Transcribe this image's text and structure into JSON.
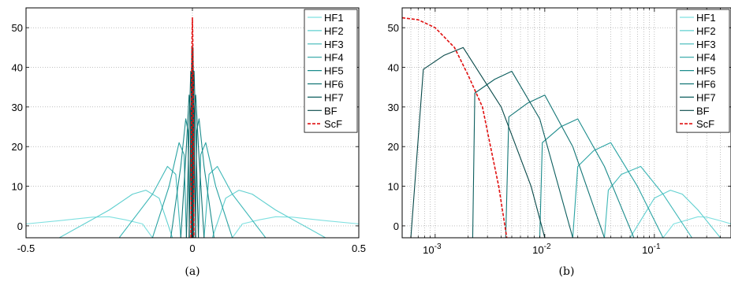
{
  "chart_data": [
    {
      "type": "line",
      "panel_label": "(a)",
      "xlim": [
        -0.5,
        0.5
      ],
      "ylim": [
        -3,
        55
      ],
      "xticks": [
        -0.5,
        0,
        0.5
      ],
      "xtick_labels": [
        "-0.5",
        "0",
        "0.5"
      ],
      "yticks": [
        0,
        10,
        20,
        30,
        40,
        50
      ],
      "ytick_labels": [
        "0",
        "10",
        "20",
        "30",
        "40",
        "50"
      ],
      "grid": true,
      "legend_position": "top-right",
      "series": [
        {
          "name": "HF1",
          "color": "#7fe0e0",
          "dash": false,
          "points": [
            [
              -0.5,
              0.5
            ],
            [
              -0.4,
              1.3
            ],
            [
              -0.3,
              2.2
            ],
            [
              -0.25,
              2.3
            ],
            [
              -0.2,
              1.5
            ],
            [
              -0.15,
              0.5
            ],
            [
              -0.12,
              -3
            ],
            [
              0.12,
              -3
            ],
            [
              0.15,
              0.5
            ],
            [
              0.2,
              1.5
            ],
            [
              0.25,
              2.3
            ],
            [
              0.3,
              2.2
            ],
            [
              0.4,
              1.3
            ],
            [
              0.5,
              0.5
            ]
          ]
        },
        {
          "name": "HF2",
          "color": "#5fcfcf",
          "dash": false,
          "points": [
            [
              -0.4,
              -3
            ],
            [
              -0.25,
              4
            ],
            [
              -0.18,
              8
            ],
            [
              -0.14,
              9
            ],
            [
              -0.1,
              7
            ],
            [
              -0.06,
              -3
            ],
            [
              0.06,
              -3
            ],
            [
              0.1,
              7
            ],
            [
              0.14,
              9
            ],
            [
              0.18,
              8
            ],
            [
              0.25,
              4
            ],
            [
              0.4,
              -3
            ]
          ]
        },
        {
          "name": "HF3",
          "color": "#3fb8b8",
          "dash": false,
          "points": [
            [
              -0.22,
              -3
            ],
            [
              -0.12,
              8
            ],
            [
              -0.075,
              15
            ],
            [
              -0.05,
              13
            ],
            [
              -0.035,
              -3
            ],
            [
              0.035,
              -3
            ],
            [
              0.05,
              13
            ],
            [
              0.075,
              15
            ],
            [
              0.12,
              8
            ],
            [
              0.22,
              -3
            ]
          ]
        },
        {
          "name": "HF4",
          "color": "#2aa3a3",
          "dash": false,
          "points": [
            [
              -0.12,
              -3
            ],
            [
              -0.07,
              10
            ],
            [
              -0.04,
              21
            ],
            [
              -0.025,
              18
            ],
            [
              -0.018,
              -3
            ],
            [
              0.018,
              -3
            ],
            [
              0.025,
              18
            ],
            [
              0.04,
              21
            ],
            [
              0.07,
              10
            ],
            [
              0.12,
              -3
            ]
          ]
        },
        {
          "name": "HF5",
          "color": "#1c8c8c",
          "dash": false,
          "points": [
            [
              -0.065,
              -3
            ],
            [
              -0.035,
              15
            ],
            [
              -0.02,
              27
            ],
            [
              -0.013,
              24
            ],
            [
              -0.009,
              -3
            ],
            [
              0.009,
              -3
            ],
            [
              0.013,
              24
            ],
            [
              0.02,
              27
            ],
            [
              0.035,
              15
            ],
            [
              0.065,
              -3
            ]
          ]
        },
        {
          "name": "HF6",
          "color": "#137575",
          "dash": false,
          "points": [
            [
              -0.035,
              -3
            ],
            [
              -0.018,
              20
            ],
            [
              -0.01,
              33
            ],
            [
              -0.006,
              29
            ],
            [
              -0.004,
              -3
            ],
            [
              0.004,
              -3
            ],
            [
              0.006,
              29
            ],
            [
              0.01,
              33
            ],
            [
              0.018,
              20
            ],
            [
              0.035,
              -3
            ]
          ]
        },
        {
          "name": "HF7",
          "color": "#0c5e5e",
          "dash": false,
          "points": [
            [
              -0.018,
              -3
            ],
            [
              -0.009,
              27
            ],
            [
              -0.005,
              39
            ],
            [
              -0.003,
              34
            ],
            [
              -0.002,
              -3
            ],
            [
              0.002,
              -3
            ],
            [
              0.003,
              34
            ],
            [
              0.005,
              39
            ],
            [
              0.009,
              27
            ],
            [
              0.018,
              -3
            ]
          ]
        },
        {
          "name": "BF",
          "color": "#074848",
          "dash": false,
          "points": [
            [
              -0.01,
              -3
            ],
            [
              -0.004,
              30
            ],
            [
              -0.0018,
              45
            ],
            [
              -0.0008,
              40
            ],
            [
              -0.0005,
              -3
            ],
            [
              0.0005,
              -3
            ],
            [
              0.0008,
              40
            ],
            [
              0.0018,
              45
            ],
            [
              0.004,
              30
            ],
            [
              0.01,
              -3
            ]
          ]
        },
        {
          "name": "ScF",
          "color": "#e01010",
          "dash": true,
          "points": [
            [
              -0.0045,
              -3
            ],
            [
              -0.003,
              20
            ],
            [
              -0.002,
              38
            ],
            [
              -0.001,
              48
            ],
            [
              0,
              52.5
            ],
            [
              0.001,
              48
            ],
            [
              0.002,
              38
            ],
            [
              0.003,
              20
            ],
            [
              0.0045,
              -3
            ]
          ]
        }
      ]
    },
    {
      "type": "line",
      "panel_label": "(b)",
      "xscale": "log",
      "xlim": [
        0.0005,
        0.5
      ],
      "ylim": [
        -3,
        55
      ],
      "xticks": [
        0.001,
        0.01,
        0.1
      ],
      "xtick_labels": [
        "10-3",
        "10-2",
        "10-1"
      ],
      "yticks": [
        0,
        10,
        20,
        30,
        40,
        50
      ],
      "ytick_labels": [
        "0",
        "10",
        "20",
        "30",
        "40",
        "50"
      ],
      "grid": true,
      "legend_position": "top-right",
      "series": [
        {
          "name": "HF1",
          "color": "#7fe0e0",
          "dash": false,
          "points": [
            [
              0.12,
              -3
            ],
            [
              0.15,
              0.5
            ],
            [
              0.2,
              1.5
            ],
            [
              0.25,
              2.3
            ],
            [
              0.3,
              2.2
            ],
            [
              0.4,
              1.3
            ],
            [
              0.5,
              0.5
            ]
          ]
        },
        {
          "name": "HF2",
          "color": "#5fcfcf",
          "dash": false,
          "points": [
            [
              0.06,
              -3
            ],
            [
              0.1,
              7
            ],
            [
              0.14,
              9
            ],
            [
              0.18,
              8
            ],
            [
              0.25,
              4
            ],
            [
              0.4,
              -3
            ]
          ]
        },
        {
          "name": "HF3",
          "color": "#3fb8b8",
          "dash": false,
          "points": [
            [
              0.035,
              -3
            ],
            [
              0.038,
              9
            ],
            [
              0.05,
              13
            ],
            [
              0.075,
              15
            ],
            [
              0.12,
              8
            ],
            [
              0.22,
              -3
            ]
          ]
        },
        {
          "name": "HF4",
          "color": "#2aa3a3",
          "dash": false,
          "points": [
            [
              0.018,
              -3
            ],
            [
              0.02,
              15
            ],
            [
              0.028,
              19
            ],
            [
              0.04,
              21
            ],
            [
              0.07,
              10
            ],
            [
              0.12,
              -3
            ]
          ]
        },
        {
          "name": "HF5",
          "color": "#1c8c8c",
          "dash": false,
          "points": [
            [
              0.009,
              -3
            ],
            [
              0.0095,
              21
            ],
            [
              0.014,
              25
            ],
            [
              0.02,
              27
            ],
            [
              0.035,
              15
            ],
            [
              0.065,
              -3
            ]
          ]
        },
        {
          "name": "HF6",
          "color": "#137575",
          "dash": false,
          "points": [
            [
              0.0044,
              -3
            ],
            [
              0.0047,
              27.5
            ],
            [
              0.007,
              31
            ],
            [
              0.01,
              33
            ],
            [
              0.018,
              20
            ],
            [
              0.035,
              -3
            ]
          ]
        },
        {
          "name": "HF7",
          "color": "#0c5e5e",
          "dash": false,
          "points": [
            [
              0.0022,
              -3
            ],
            [
              0.0023,
              33.5
            ],
            [
              0.0035,
              37
            ],
            [
              0.005,
              39
            ],
            [
              0.009,
              27
            ],
            [
              0.018,
              -3
            ]
          ]
        },
        {
          "name": "BF",
          "color": "#074848",
          "dash": false,
          "points": [
            [
              0.0006,
              -3
            ],
            [
              0.00078,
              39.5
            ],
            [
              0.0012,
              43
            ],
            [
              0.0018,
              45
            ],
            [
              0.004,
              30
            ],
            [
              0.0075,
              10
            ],
            [
              0.01,
              -3
            ]
          ]
        },
        {
          "name": "ScF",
          "color": "#e01010",
          "dash": true,
          "points": [
            [
              0.0005,
              52.5
            ],
            [
              0.0007,
              52
            ],
            [
              0.001,
              50
            ],
            [
              0.0015,
              45
            ],
            [
              0.002,
              38
            ],
            [
              0.0027,
              30
            ],
            [
              0.0032,
              20
            ],
            [
              0.0038,
              10
            ],
            [
              0.0045,
              -3
            ]
          ]
        }
      ]
    }
  ]
}
